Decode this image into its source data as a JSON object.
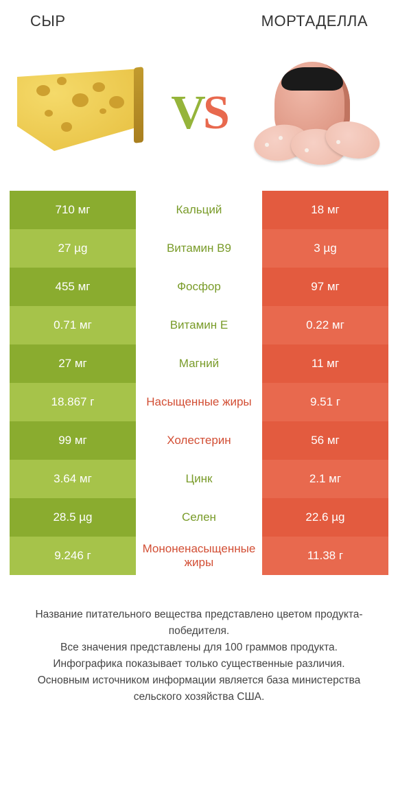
{
  "titles": {
    "left": "СЫР",
    "right": "МОРТАДЕЛЛА"
  },
  "vs": {
    "v": "V",
    "s": "S"
  },
  "colors": {
    "green_dark": "#8aac2f",
    "green_light": "#a6c34a",
    "red_dark": "#e35b3f",
    "red_light": "#e8694e",
    "txt_green": "#799b29",
    "txt_red": "#d24e34"
  },
  "rows": [
    {
      "left": "710 мг",
      "label": "Кальций",
      "right": "18 мг",
      "winner": "left"
    },
    {
      "left": "27 µg",
      "label": "Витамин B9",
      "right": "3 µg",
      "winner": "left"
    },
    {
      "left": "455 мг",
      "label": "Фосфор",
      "right": "97 мг",
      "winner": "left"
    },
    {
      "left": "0.71 мг",
      "label": "Витамин E",
      "right": "0.22 мг",
      "winner": "left"
    },
    {
      "left": "27 мг",
      "label": "Магний",
      "right": "11 мг",
      "winner": "left"
    },
    {
      "left": "18.867 г",
      "label": "Насыщенные жиры",
      "right": "9.51 г",
      "winner": "right"
    },
    {
      "left": "99 мг",
      "label": "Холестерин",
      "right": "56 мг",
      "winner": "right"
    },
    {
      "left": "3.64 мг",
      "label": "Цинк",
      "right": "2.1 мг",
      "winner": "left"
    },
    {
      "left": "28.5 µg",
      "label": "Селен",
      "right": "22.6 µg",
      "winner": "left"
    },
    {
      "left": "9.246 г",
      "label": "Мононенасыщенные жиры",
      "right": "11.38 г",
      "winner": "right"
    }
  ],
  "footer": "Название питательного вещества представлено цветом продукта-победителя.\nВсе значения представлены для 100 граммов продукта.\nИнфографика показывает только существенные различия.\nОсновным источником информации является база министерства сельского хозяйства США."
}
